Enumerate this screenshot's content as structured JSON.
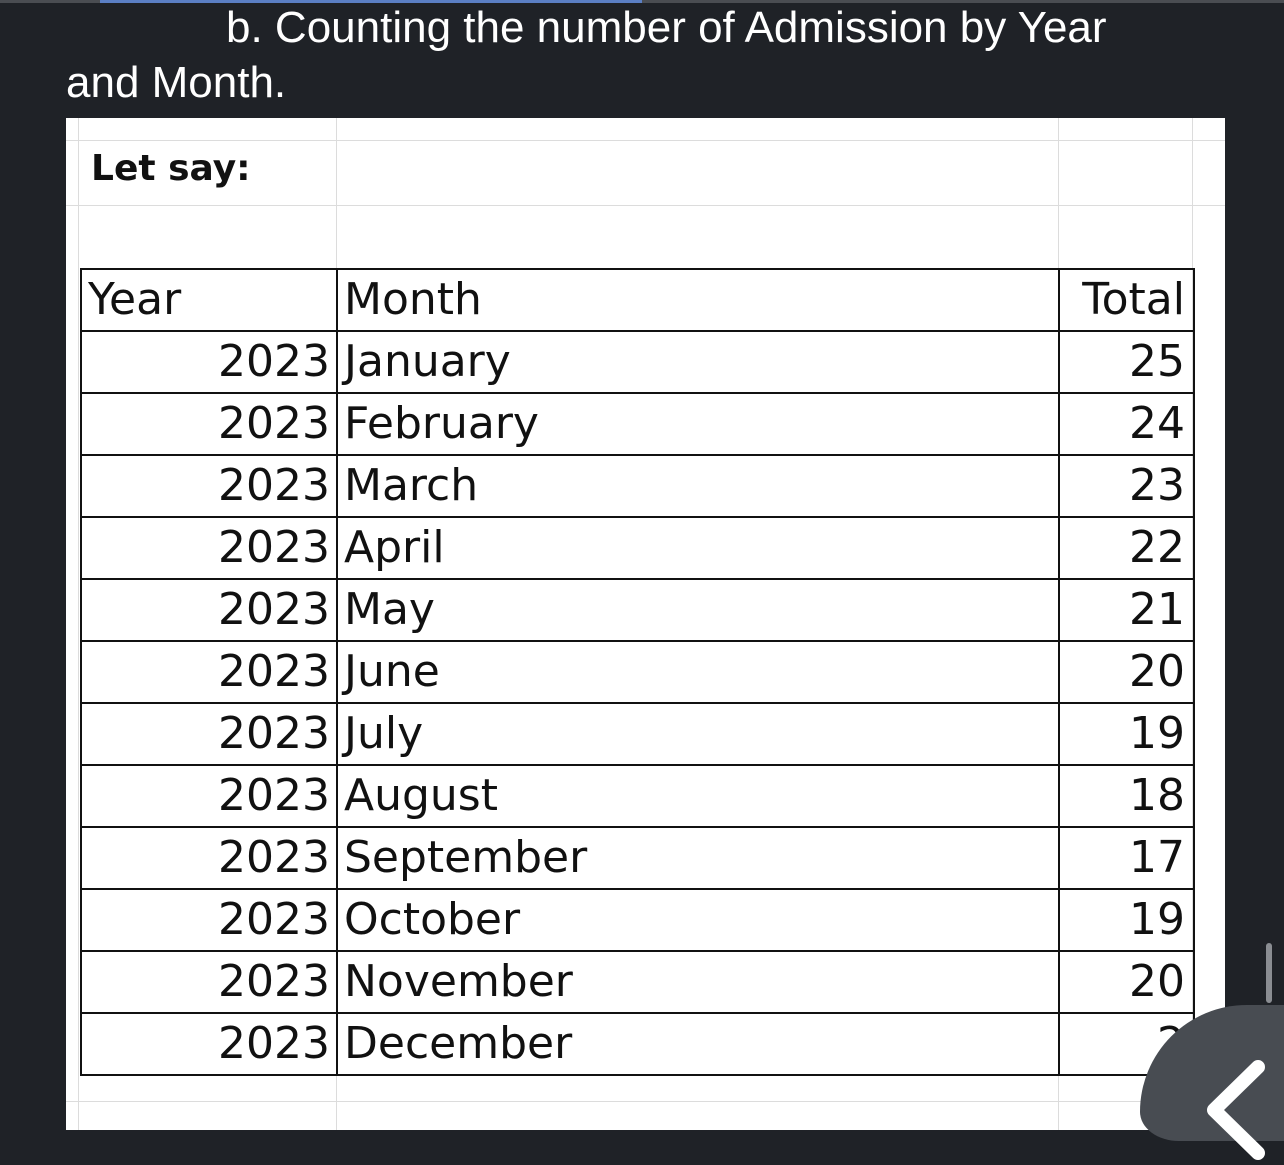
{
  "heading": {
    "line1": "b. Counting the number of Admission by Year",
    "line2": "and Month."
  },
  "sheet": {
    "label": "Let say:",
    "columns": [
      "Year",
      "Month",
      "Total"
    ],
    "rows": [
      {
        "year": "2023",
        "month": "January",
        "total": "25"
      },
      {
        "year": "2023",
        "month": "February",
        "total": "24"
      },
      {
        "year": "2023",
        "month": "March",
        "total": "23"
      },
      {
        "year": "2023",
        "month": "April",
        "total": "22"
      },
      {
        "year": "2023",
        "month": "May",
        "total": "21"
      },
      {
        "year": "2023",
        "month": "June",
        "total": "20"
      },
      {
        "year": "2023",
        "month": "July",
        "total": "19"
      },
      {
        "year": "2023",
        "month": "August",
        "total": "18"
      },
      {
        "year": "2023",
        "month": "September",
        "total": "17"
      },
      {
        "year": "2023",
        "month": "October",
        "total": "19"
      },
      {
        "year": "2023",
        "month": "November",
        "total": "20"
      },
      {
        "year": "2023",
        "month": "December",
        "total": "2"
      }
    ]
  },
  "controls": {
    "back_icon": "chevron-left-icon"
  },
  "colors": {
    "background": "#1f2227",
    "progress": "#5b7fc4",
    "back_button": "#484c52"
  }
}
